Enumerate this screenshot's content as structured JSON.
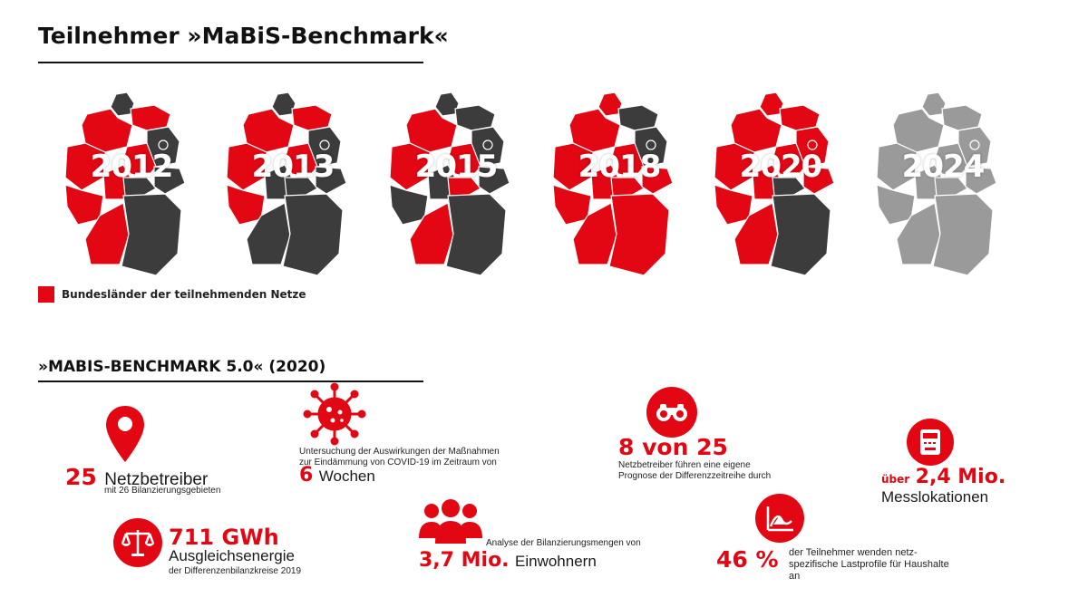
{
  "header": {
    "title": "Teilnehmer »MaBiS-Benchmark«"
  },
  "maps": [
    {
      "year": "2012",
      "pattern": "a"
    },
    {
      "year": "2013",
      "pattern": "b"
    },
    {
      "year": "2015",
      "pattern": "c"
    },
    {
      "year": "2018",
      "pattern": "d"
    },
    {
      "year": "2020",
      "pattern": "e"
    },
    {
      "year": "2024",
      "pattern": "grey"
    }
  ],
  "legend": {
    "label": "Bundesländer der teilnehmenden Netze",
    "color": "#e30613"
  },
  "section": {
    "title": "»MABIS-BENCHMARK 5.0« (2020)"
  },
  "stats": {
    "netzbetreiber": {
      "value": "25",
      "label": "Netzbetreiber",
      "sub": "mit 26 Bilanzierungsgebieten"
    },
    "covid": {
      "desc": "Untersuchung der Auswirkungen der Maßnahmen zur Eindämmung von COVID-19 im Zeitraum von",
      "value": "6",
      "label": "Wochen"
    },
    "prognose": {
      "value": "8 von 25",
      "desc": "Netzbetreiber führen eine eigene Prognose der Differenzzeitreihe durch"
    },
    "mess": {
      "prefix": "über",
      "value": "2,4 Mio.",
      "label": "Messlokationen"
    },
    "energie": {
      "value": "711 GWh",
      "label": "Ausgleichsenergie",
      "sub": "der Differenzenbilanzkreise 2019"
    },
    "einwohner": {
      "desc": "Analyse der Bilanzierungsmengen von",
      "value": "3,7 Mio.",
      "label": "Einwohnern"
    },
    "lastprofile": {
      "value": "46 %",
      "desc": "der Teilnehmer wenden netz-spezifische Lastprofile für Haushalte an"
    }
  },
  "colors": {
    "accent": "#e30613",
    "dark": "#3c3c3c",
    "grey": "#9a9a9a"
  },
  "icons": [
    "map-pin-icon",
    "virus-icon",
    "binoculars-icon",
    "electric-meter-icon",
    "scales-icon",
    "people-icon",
    "load-profile-icon"
  ]
}
